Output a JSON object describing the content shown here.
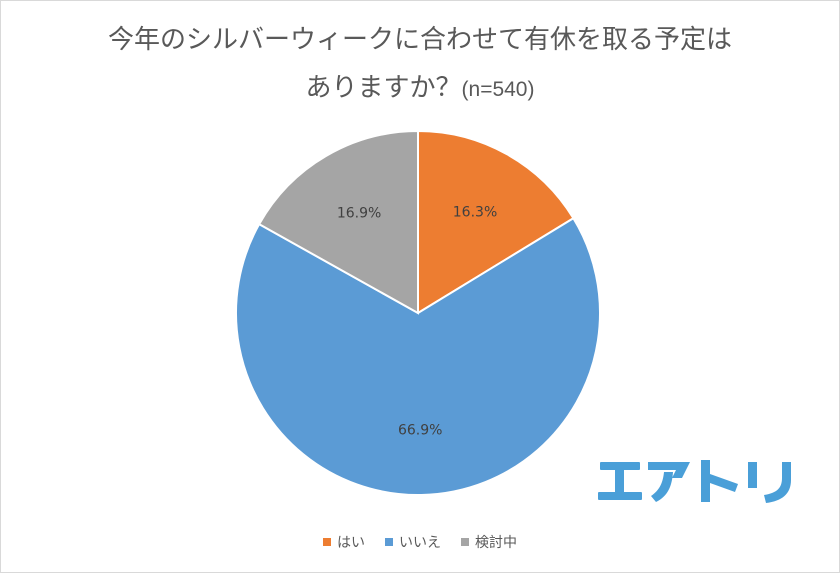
{
  "chart_data": {
    "type": "pie",
    "title": "今年のシルバーウィークに合わせて有休を取る予定はありますか？(n=540)",
    "title_lines": [
      "今年のシルバーウィークに合わせて有休を取る予定は",
      "ありますか？"
    ],
    "sample_note": "(n=540)",
    "categories": [
      "はい",
      "いいえ",
      "検討中"
    ],
    "values": [
      16.3,
      66.9,
      16.9
    ],
    "value_labels": [
      "16.3%",
      "66.9%",
      "16.9%"
    ],
    "colors": [
      "#ED7D31",
      "#5B9BD5",
      "#A5A5A5"
    ],
    "start_angle_deg": 0,
    "direction": "clockwise",
    "legend_position": "bottom",
    "data_labels": true
  },
  "legend": {
    "items": [
      {
        "label": "はい",
        "color": "#ED7D31"
      },
      {
        "label": "いいえ",
        "color": "#5B9BD5"
      },
      {
        "label": "検討中",
        "color": "#A5A5A5"
      }
    ]
  },
  "logo": {
    "text": "エアトリ",
    "color": "#4A9FD8"
  }
}
